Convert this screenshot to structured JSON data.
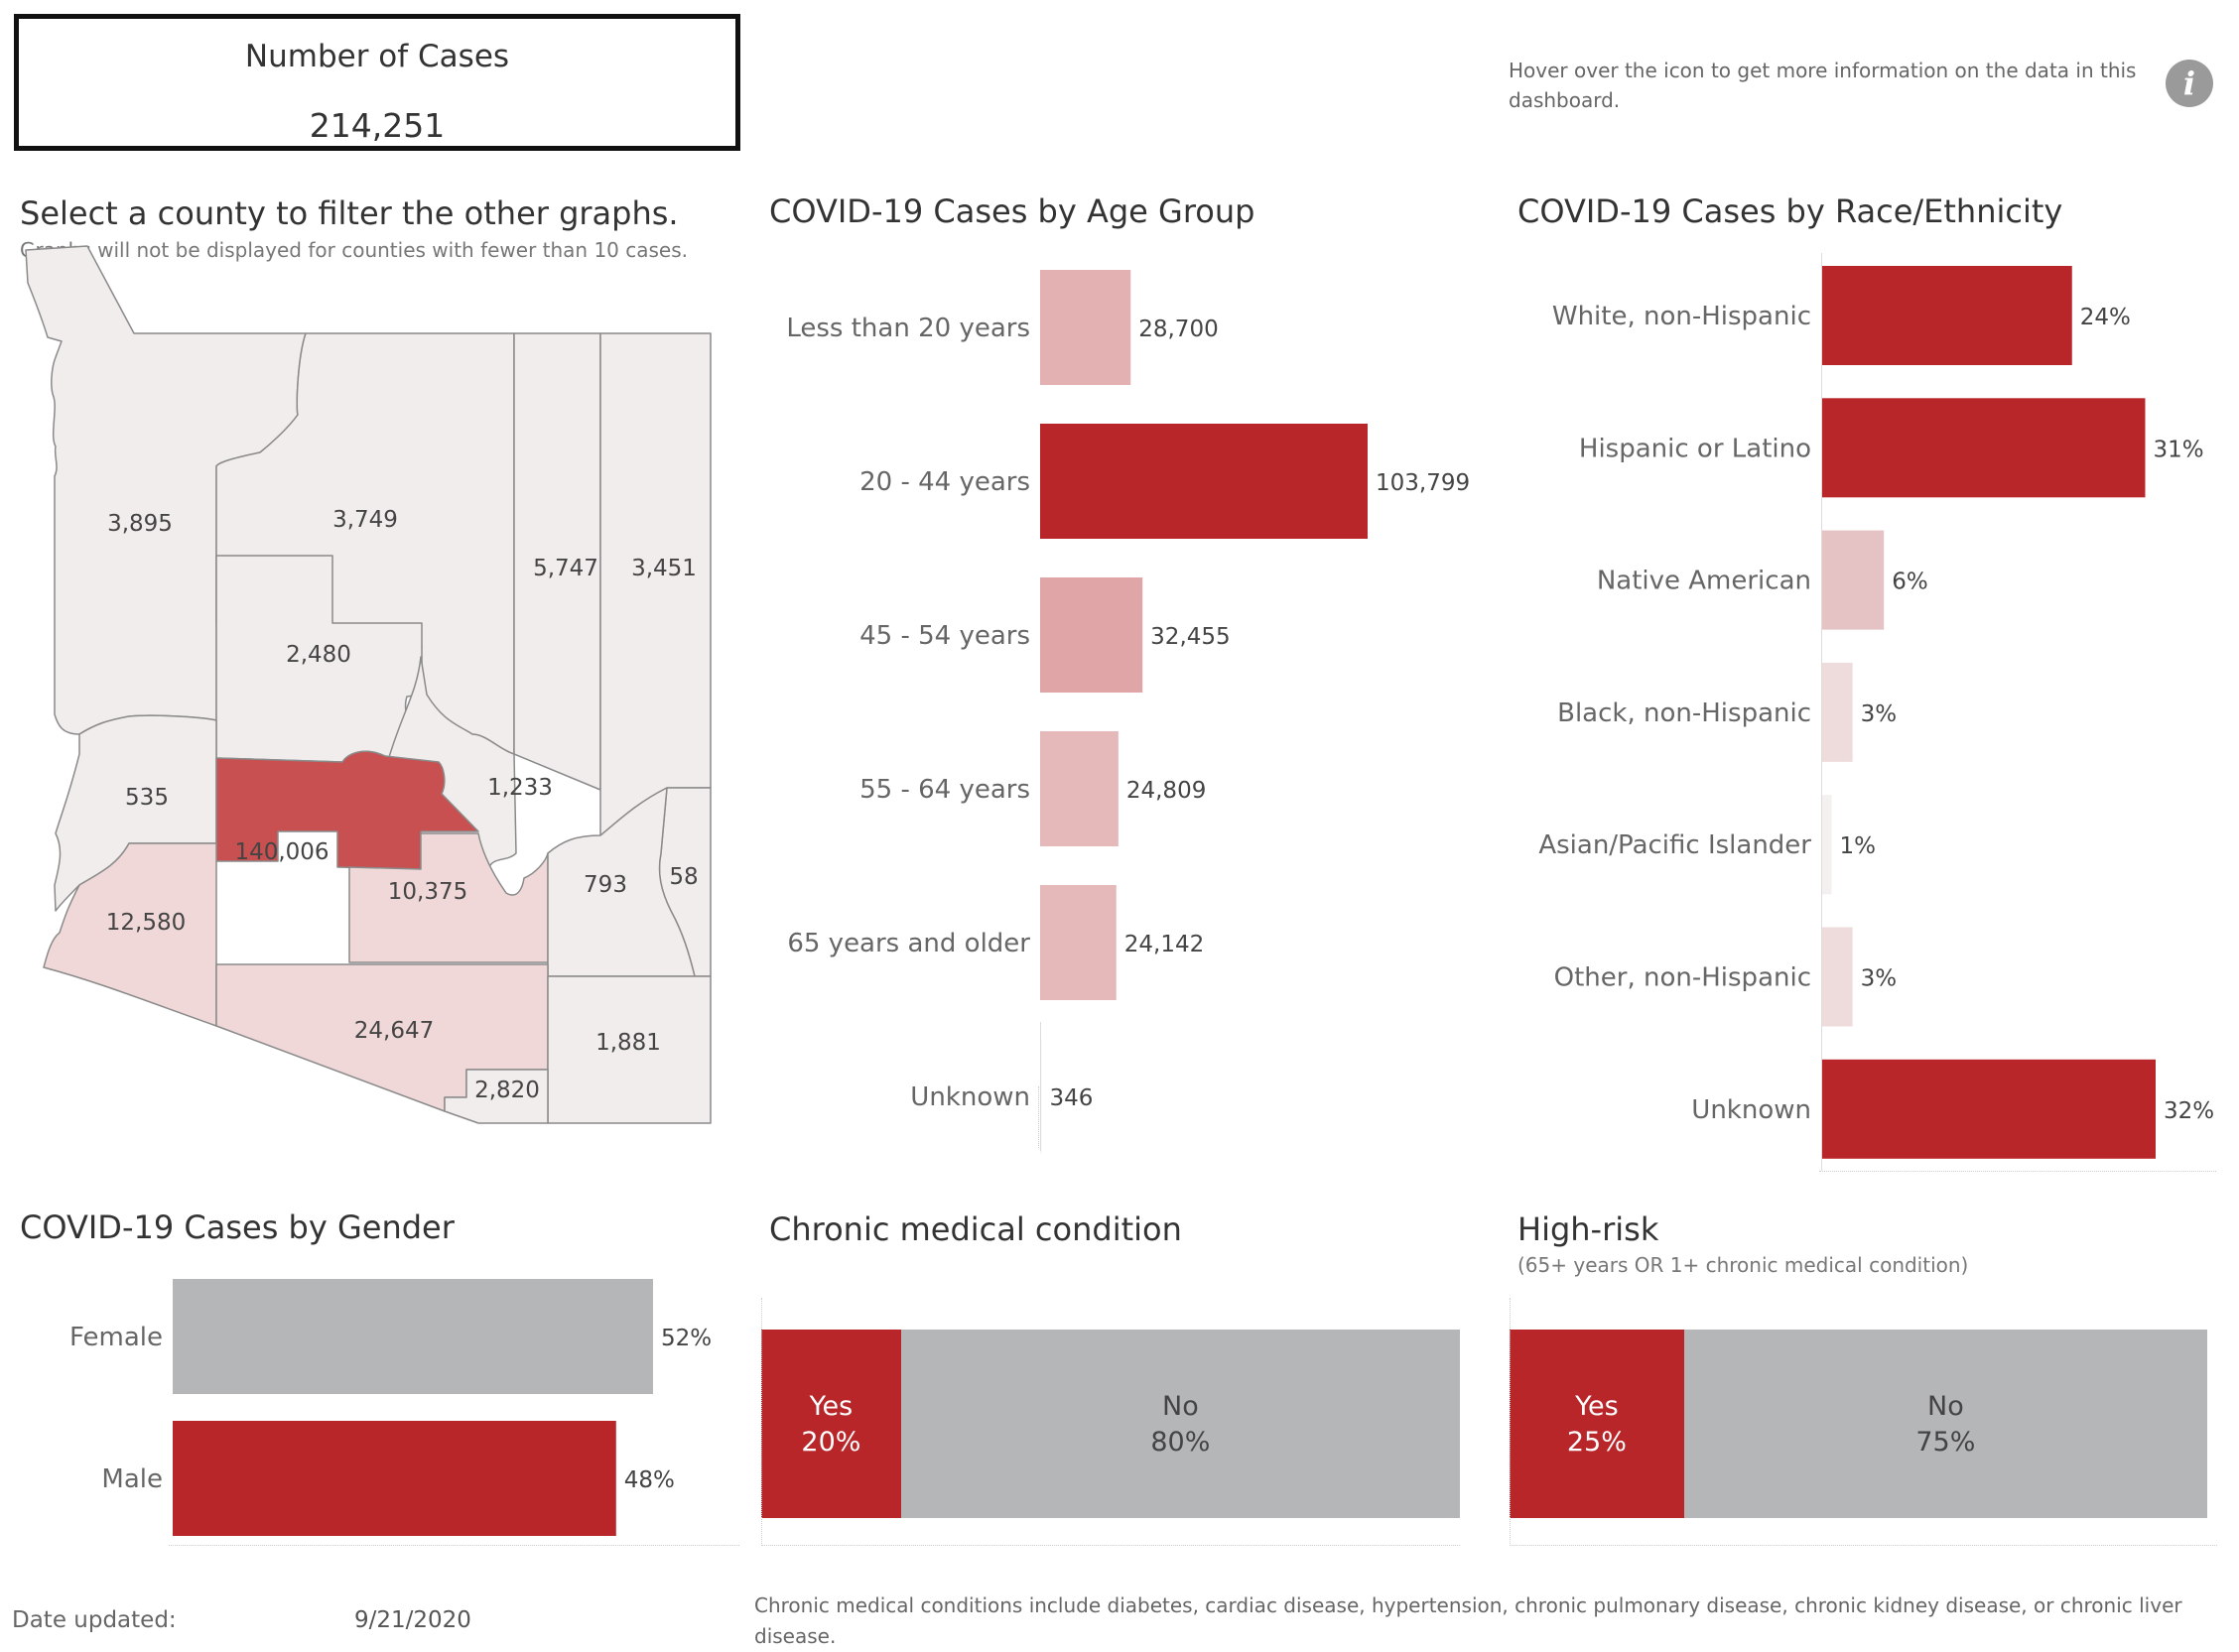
{
  "kpi": {
    "title": "Number of Cases",
    "value": "214,251"
  },
  "info": {
    "hover_text": "Hover over the icon to get more information on the data in this dashboard.",
    "icon": "info-icon"
  },
  "map": {
    "title": "Select a county to filter the other graphs.",
    "subtitle": "Graphs will not be displayed for counties with fewer than 10 cases.",
    "counties": [
      {
        "label": "3,895",
        "value": 3895
      },
      {
        "label": "3,749",
        "value": 3749
      },
      {
        "label": "5,747",
        "value": 5747
      },
      {
        "label": "3,451",
        "value": 3451
      },
      {
        "label": "2,480",
        "value": 2480
      },
      {
        "label": "535",
        "value": 535
      },
      {
        "label": "1,233",
        "value": 1233
      },
      {
        "label": "140,006",
        "value": 140006
      },
      {
        "label": "10,375",
        "value": 10375
      },
      {
        "label": "793",
        "value": 793
      },
      {
        "label": "58",
        "value": 58
      },
      {
        "label": "12,580",
        "value": 12580
      },
      {
        "label": "24,647",
        "value": 24647
      },
      {
        "label": "1,881",
        "value": 1881
      },
      {
        "label": "2,820",
        "value": 2820
      }
    ],
    "colors": {
      "high": "#c85050",
      "mid": "#f0d8d8",
      "low": "#f2eded"
    }
  },
  "chart_data": [
    {
      "type": "bar",
      "orientation": "horizontal",
      "title": "COVID-19 Cases by Age Group",
      "categories": [
        "Less than 20 years",
        "20 -  44 years",
        "45 - 54 years",
        "55 - 64 years",
        "65 years and older",
        "Unknown"
      ],
      "values": [
        28700,
        103799,
        32455,
        24809,
        24142,
        346
      ],
      "labels": [
        "28,700",
        "103,799",
        "32,455",
        "24,809",
        "24,142",
        "346"
      ],
      "colors": [
        "#e3b1b2",
        "#b8262a",
        "#e0a5a6",
        "#e5b9ba",
        "#e5b9ba",
        "#f8f4f4"
      ]
    },
    {
      "type": "bar",
      "orientation": "horizontal",
      "title": "COVID-19 Cases by Race/Ethnicity",
      "categories": [
        "White, non-Hispanic",
        "Hispanic or Latino",
        "Native American",
        "Black, non-Hispanic",
        "Asian/Pacific Islander",
        "Other, non-Hispanic",
        "Unknown"
      ],
      "values": [
        24,
        31,
        6,
        3,
        1,
        3,
        32
      ],
      "labels": [
        "24%",
        "31%",
        "6%",
        "3%",
        "1%",
        "3%",
        "32%"
      ],
      "colors": [
        "#b8262a",
        "#b8262a",
        "#e5c3c4",
        "#eedcdc",
        "#f4f0f0",
        "#eedcdc",
        "#b8262a"
      ]
    },
    {
      "type": "bar",
      "orientation": "horizontal",
      "title": "COVID-19 Cases by Gender",
      "categories": [
        "Female",
        "Male"
      ],
      "values": [
        52,
        48
      ],
      "labels": [
        "52%",
        "48%"
      ],
      "colors": [
        "#b4b6b7",
        "#b8262a"
      ]
    },
    {
      "type": "bar",
      "orientation": "stacked-horizontal",
      "title": "Chronic medical condition",
      "categories": [
        "Yes",
        "No"
      ],
      "values": [
        20,
        80
      ],
      "labels": [
        "20%",
        "80%"
      ],
      "colors": [
        "#b8262a",
        "#b4b6b7"
      ]
    },
    {
      "type": "bar",
      "orientation": "stacked-horizontal",
      "title": "High-risk",
      "subtitle": "(65+ years OR 1+ chronic medical condition)",
      "categories": [
        "Yes",
        "No"
      ],
      "values": [
        25,
        75
      ],
      "labels": [
        "25%",
        "75%"
      ],
      "colors": [
        "#b8262a",
        "#b4b6b7"
      ]
    }
  ],
  "footer": {
    "date_label": "Date updated:",
    "date_value": "9/21/2020",
    "footnote": "Chronic medical conditions include diabetes, cardiac disease, hypertension, chronic pulmonary disease, chronic kidney disease, or chronic liver disease."
  }
}
